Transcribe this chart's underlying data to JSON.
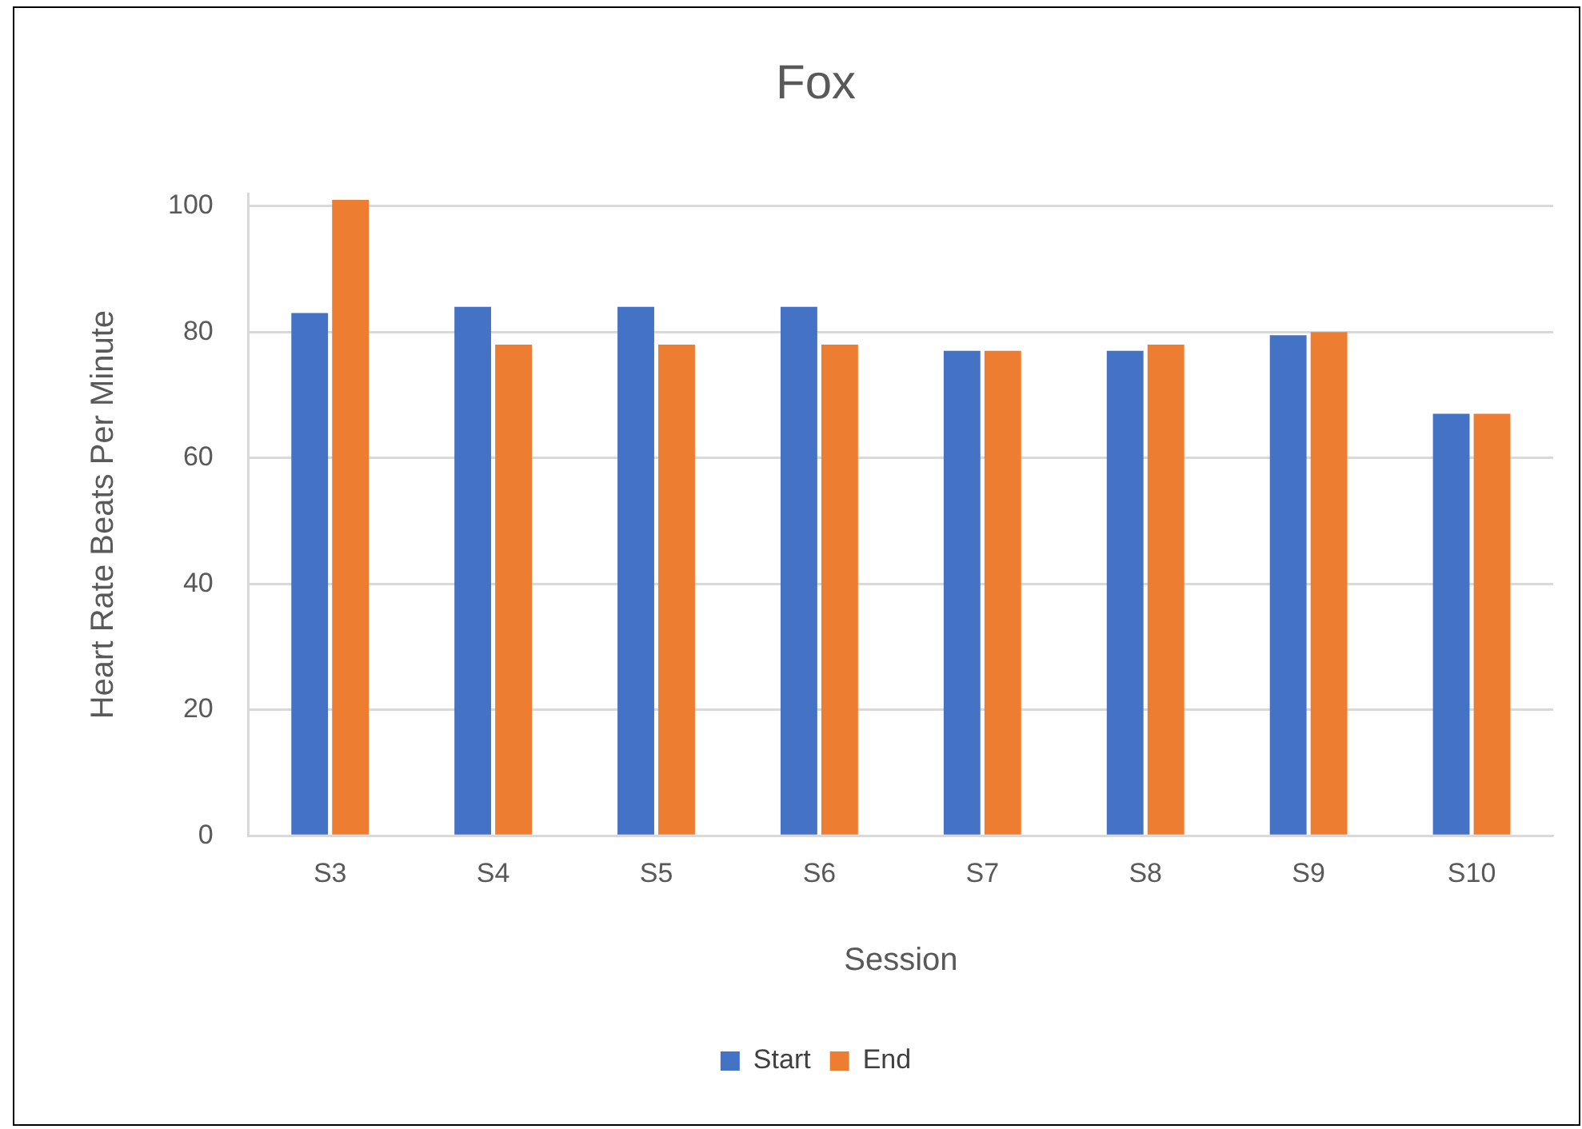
{
  "chart_data": {
    "type": "bar",
    "title": "Fox",
    "xlabel": "Session",
    "ylabel": "Heart Rate Beats Per Minute",
    "categories": [
      "S3",
      "S4",
      "S5",
      "S6",
      "S7",
      "S8",
      "S9",
      "S10"
    ],
    "series": [
      {
        "name": "Start",
        "color": "#4472c4",
        "values": [
          83,
          84,
          84,
          84,
          77,
          77,
          79.5,
          67
        ]
      },
      {
        "name": "End",
        "color": "#ed7d31",
        "values": [
          101,
          78,
          78,
          78,
          77,
          78,
          80,
          67
        ]
      }
    ],
    "ylim": [
      0,
      102
    ],
    "yticks": [
      0,
      20,
      40,
      60,
      80,
      100
    ],
    "grid": "y",
    "legend": "bottom"
  }
}
